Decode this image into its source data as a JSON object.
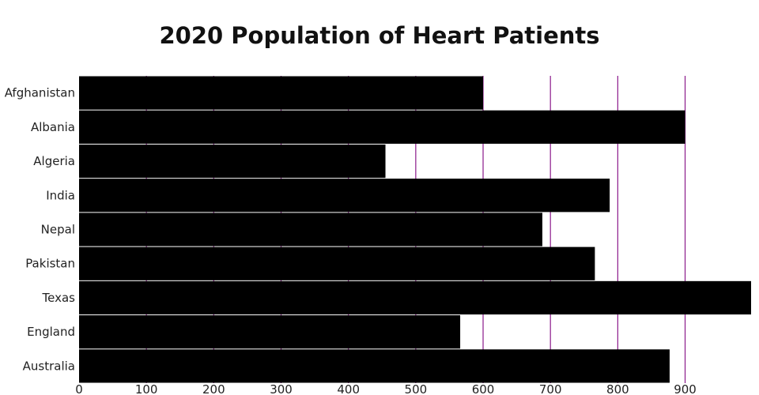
{
  "chart_data": {
    "type": "bar",
    "orientation": "horizontal",
    "title": "2020 Population of Heart Patients",
    "xlabel": "",
    "ylabel": "",
    "categories": [
      "Afghanistan",
      "Albania",
      "Algeria",
      "India",
      "Nepal",
      "Pakistan",
      "Texas",
      "England",
      "Australia"
    ],
    "values": [
      600,
      900,
      455,
      788,
      688,
      766,
      998,
      566,
      877
    ],
    "xlim": [
      0,
      998
    ],
    "xticks": [
      0,
      100,
      200,
      300,
      400,
      500,
      600,
      700,
      800,
      900
    ],
    "grid": true,
    "legend": "none",
    "bar_color": "#000000",
    "grid_color": "#8b1a8b"
  }
}
